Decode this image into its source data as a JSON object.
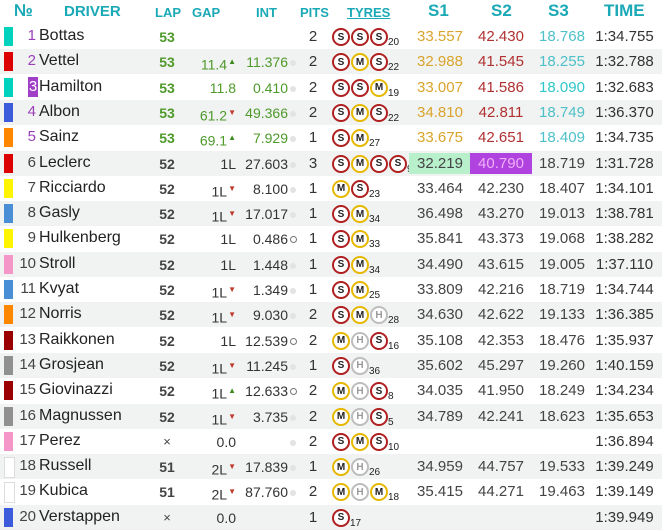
{
  "header": {
    "pos": "№",
    "driver": "DRIVER",
    "lap": "LAP",
    "gap": "GAP",
    "int": "INT",
    "pits": "PITS",
    "tyres": "TYRES",
    "s1": "S1",
    "s2": "S2",
    "s3": "S3",
    "time": "TIME"
  },
  "colors": {
    "header_text": "#1aa9b6",
    "mercedes": "#00d2be",
    "ferrari": "#dc0000",
    "red_bull": "#3c5cdb",
    "mclaren": "#ff8700",
    "renault": "#fff500",
    "alphatauri": "#4a8fd6",
    "racing_point": "#f596c8",
    "alfa_romeo": "#9b0000",
    "haas": "#909090",
    "williams": "#ffffff",
    "session_best": "#b043e0",
    "personal_best": "#b8f0cc"
  },
  "rows": [
    {
      "pos": "1",
      "driver": "Bottas",
      "lap": "53",
      "gap": "",
      "int": "",
      "pits": "2",
      "tyres": [
        "S",
        "S",
        "S"
      ],
      "tyre_count": "20",
      "s1": "33.557",
      "s2": "42.430",
      "s3": "18.768",
      "time": "1:34.755"
    },
    {
      "pos": "2",
      "driver": "Vettel",
      "lap": "53",
      "gap": "11.4",
      "int": "11.376",
      "pits": "2",
      "tyres": [
        "S",
        "M",
        "S"
      ],
      "tyre_count": "22",
      "s1": "32.988",
      "s2": "41.545",
      "s3": "18.255",
      "time": "1:32.788"
    },
    {
      "pos": "3",
      "driver": "Hamilton",
      "lap": "53",
      "gap": "11.8",
      "int": "0.410",
      "pits": "2",
      "tyres": [
        "S",
        "S",
        "M"
      ],
      "tyre_count": "19",
      "s1": "33.007",
      "s2": "41.586",
      "s3": "18.090",
      "time": "1:32.683"
    },
    {
      "pos": "4",
      "driver": "Albon",
      "lap": "53",
      "gap": "61.2",
      "int": "49.366",
      "pits": "2",
      "tyres": [
        "S",
        "M",
        "S"
      ],
      "tyre_count": "22",
      "s1": "34.810",
      "s2": "42.811",
      "s3": "18.749",
      "time": "1:36.370"
    },
    {
      "pos": "5",
      "driver": "Sainz",
      "lap": "53",
      "gap": "69.1",
      "int": "7.929",
      "pits": "1",
      "tyres": [
        "S",
        "M"
      ],
      "tyre_count": "27",
      "s1": "33.675",
      "s2": "42.651",
      "s3": "18.409",
      "time": "1:34.735"
    },
    {
      "pos": "6",
      "driver": "Leclerc",
      "lap": "52",
      "gap": "1L",
      "int": "27.603",
      "pits": "3",
      "tyres": [
        "S",
        "M",
        "S",
        "S"
      ],
      "tyre_count": "9",
      "s1": "32.219",
      "s2": "40.790",
      "s3": "18.719",
      "time": "1:31.728"
    },
    {
      "pos": "7",
      "driver": "Ricciardo",
      "lap": "52",
      "gap": "1L",
      "int": "8.100",
      "pits": "1",
      "tyres": [
        "M",
        "S"
      ],
      "tyre_count": "23",
      "s1": "33.464",
      "s2": "42.230",
      "s3": "18.407",
      "time": "1:34.101"
    },
    {
      "pos": "8",
      "driver": "Gasly",
      "lap": "52",
      "gap": "1L",
      "int": "17.017",
      "pits": "1",
      "tyres": [
        "S",
        "M"
      ],
      "tyre_count": "34",
      "s1": "36.498",
      "s2": "43.270",
      "s3": "19.013",
      "time": "1:38.781"
    },
    {
      "pos": "9",
      "driver": "Hulkenberg",
      "lap": "52",
      "gap": "1L",
      "int": "0.486",
      "pits": "1",
      "tyres": [
        "S",
        "M"
      ],
      "tyre_count": "33",
      "s1": "35.841",
      "s2": "43.373",
      "s3": "19.068",
      "time": "1:38.282"
    },
    {
      "pos": "10",
      "driver": "Stroll",
      "lap": "52",
      "gap": "1L",
      "int": "1.448",
      "pits": "1",
      "tyres": [
        "S",
        "M"
      ],
      "tyre_count": "34",
      "s1": "34.490",
      "s2": "43.615",
      "s3": "19.005",
      "time": "1:37.110"
    },
    {
      "pos": "11",
      "driver": "Kvyat",
      "lap": "52",
      "gap": "1L",
      "int": "1.349",
      "pits": "1",
      "tyres": [
        "S",
        "M"
      ],
      "tyre_count": "25",
      "s1": "33.809",
      "s2": "42.216",
      "s3": "18.719",
      "time": "1:34.744"
    },
    {
      "pos": "12",
      "driver": "Norris",
      "lap": "52",
      "gap": "1L",
      "int": "9.030",
      "pits": "2",
      "tyres": [
        "S",
        "M",
        "H"
      ],
      "tyre_count": "28",
      "s1": "34.630",
      "s2": "42.622",
      "s3": "19.133",
      "time": "1:36.385"
    },
    {
      "pos": "13",
      "driver": "Raikkonen",
      "lap": "52",
      "gap": "1L",
      "int": "12.539",
      "pits": "2",
      "tyres": [
        "M",
        "H",
        "S"
      ],
      "tyre_count": "16",
      "s1": "35.108",
      "s2": "42.353",
      "s3": "18.476",
      "time": "1:35.937"
    },
    {
      "pos": "14",
      "driver": "Grosjean",
      "lap": "52",
      "gap": "1L",
      "int": "11.245",
      "pits": "1",
      "tyres": [
        "S",
        "H"
      ],
      "tyre_count": "36",
      "s1": "35.602",
      "s2": "45.297",
      "s3": "19.260",
      "time": "1:40.159"
    },
    {
      "pos": "15",
      "driver": "Giovinazzi",
      "lap": "52",
      "gap": "1L",
      "int": "12.633",
      "pits": "2",
      "tyres": [
        "M",
        "H",
        "S"
      ],
      "tyre_count": "8",
      "s1": "34.035",
      "s2": "41.950",
      "s3": "18.249",
      "time": "1:34.234"
    },
    {
      "pos": "16",
      "driver": "Magnussen",
      "lap": "52",
      "gap": "1L",
      "int": "3.735",
      "pits": "2",
      "tyres": [
        "M",
        "H",
        "S"
      ],
      "tyre_count": "5",
      "s1": "34.789",
      "s2": "42.241",
      "s3": "18.623",
      "time": "1:35.653"
    },
    {
      "pos": "17",
      "driver": "Perez",
      "lap": "×",
      "gap": "0.0",
      "int": "",
      "pits": "2",
      "tyres": [
        "S",
        "M",
        "S"
      ],
      "tyre_count": "10",
      "s1": "",
      "s2": "",
      "s3": "",
      "time": "1:36.894"
    },
    {
      "pos": "18",
      "driver": "Russell",
      "lap": "51",
      "gap": "2L",
      "int": "17.839",
      "pits": "1",
      "tyres": [
        "M",
        "H"
      ],
      "tyre_count": "26",
      "s1": "34.959",
      "s2": "44.757",
      "s3": "19.533",
      "time": "1:39.249"
    },
    {
      "pos": "19",
      "driver": "Kubica",
      "lap": "51",
      "gap": "2L",
      "int": "87.760",
      "pits": "2",
      "tyres": [
        "M",
        "H",
        "M"
      ],
      "tyre_count": "18",
      "s1": "35.415",
      "s2": "44.271",
      "s3": "19.463",
      "time": "1:39.149"
    },
    {
      "pos": "20",
      "driver": "Verstappen",
      "lap": "×",
      "gap": "0.0",
      "int": "",
      "pits": "1",
      "tyres": [
        "S"
      ],
      "tyre_count": "17",
      "s1": "",
      "s2": "",
      "s3": "",
      "time": "1:39.949"
    }
  ]
}
